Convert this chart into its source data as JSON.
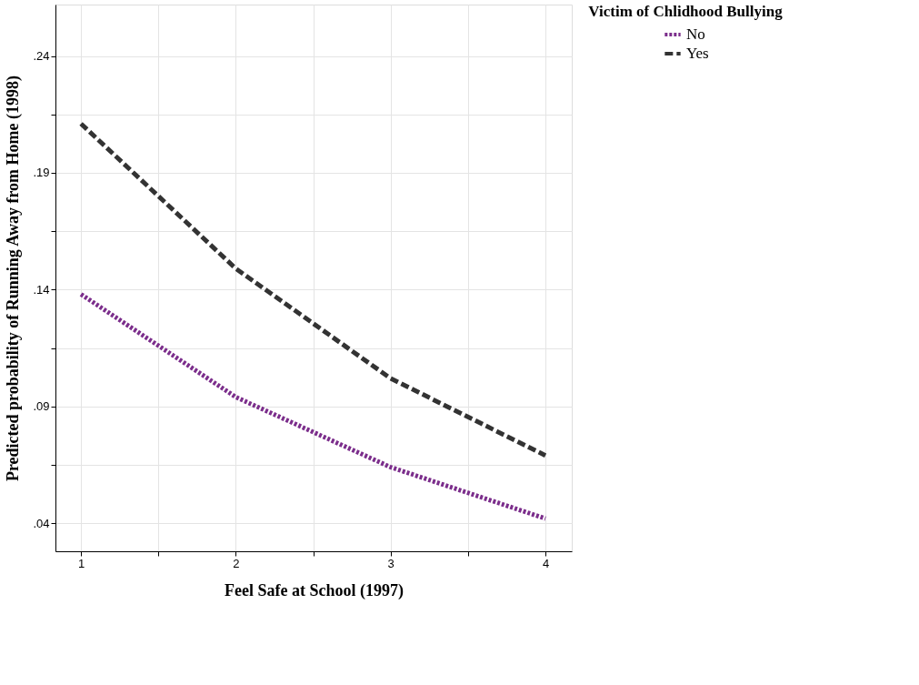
{
  "chart_data": {
    "type": "line",
    "xlabel": "Feel Safe at School (1997)",
    "ylabel": "Predicted probability of Running Away from Home (1998)",
    "legend_title": "Victim of Chlidhood Bullying",
    "x": [
      1,
      2,
      3,
      4
    ],
    "series": [
      {
        "name": "No",
        "color": "#7b2d8b",
        "values": [
          0.138,
          0.094,
          0.064,
          0.042
        ],
        "line_style": "dotted"
      },
      {
        "name": "Yes",
        "color": "#333333",
        "values": [
          0.211,
          0.149,
          0.102,
          0.069
        ],
        "line_style": "dashed"
      }
    ],
    "xlim": [
      0.835,
      4.17
    ],
    "ylim": [
      0.028,
      0.262
    ],
    "xticks": [
      1,
      {
        "value": 1.5,
        "label": null
      },
      2,
      {
        "value": 2.5,
        "label": null
      },
      3,
      {
        "value": 3.5,
        "label": null
      },
      4
    ],
    "yticks": [
      {
        "value": 0.04,
        "label": ".04"
      },
      {
        "value": 0.065,
        "label": null
      },
      {
        "value": 0.09,
        "label": ".09"
      },
      {
        "value": 0.115,
        "label": null
      },
      {
        "value": 0.14,
        "label": ".14"
      },
      {
        "value": 0.165,
        "label": null
      },
      {
        "value": 0.19,
        "label": ".19"
      },
      {
        "value": 0.215,
        "label": null
      },
      {
        "value": 0.24,
        "label": ".24"
      }
    ],
    "grid": true,
    "legend": "right",
    "marker": "none"
  }
}
